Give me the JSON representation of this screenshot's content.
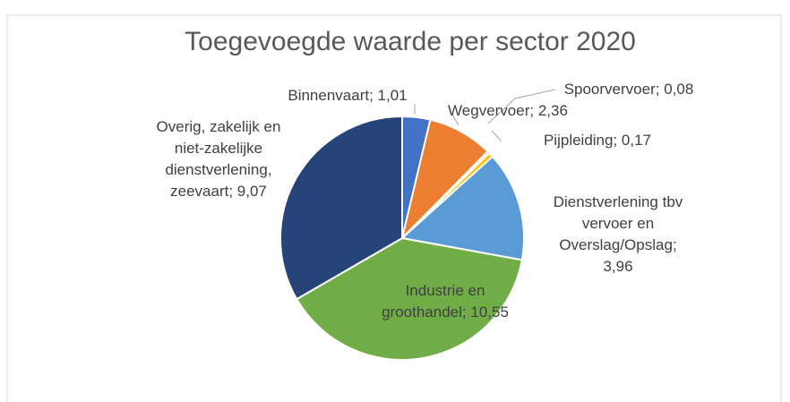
{
  "chart_data": {
    "type": "pie",
    "title": "Toegevoegde  waarde per sector 2020",
    "categories": [
      "Binnenvaart",
      "Wegvervoer",
      "Spoorvervoer",
      "Pijpleiding",
      "Dienstverlening tbv vervoer en Overslag/Opslag",
      "Industrie en groothandel",
      "Overig, zakelijk en niet-zakelijke dienstverlening, zeevaart"
    ],
    "values": [
      1.01,
      2.36,
      0.08,
      0.17,
      3.96,
      10.55,
      9.07
    ],
    "value_labels": [
      "1,01",
      "2,36",
      "0,08",
      "0,17",
      "3,96",
      "10,55",
      "9,07"
    ],
    "colors": [
      "#4472c4",
      "#ed7d31",
      "#a5a5a5",
      "#ffc000",
      "#5b9bd5",
      "#70ad47",
      "#264478"
    ]
  }
}
